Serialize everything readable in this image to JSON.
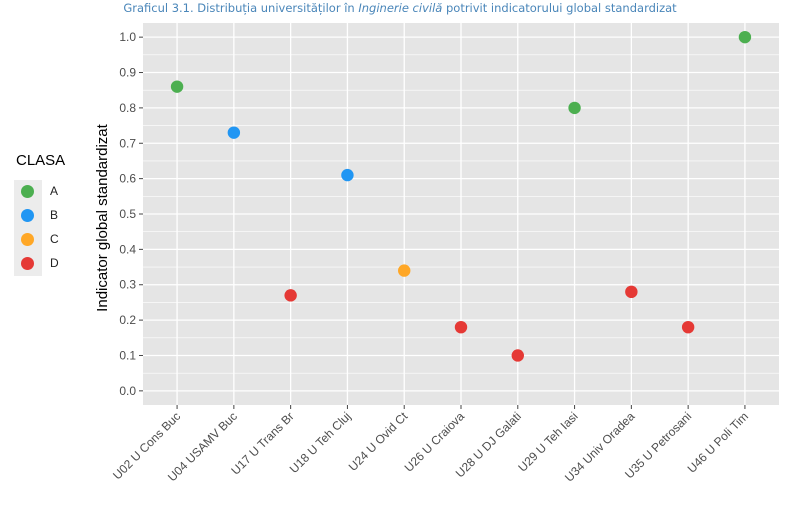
{
  "title": {
    "prefix": "Graficul 3.1. Distribuția universităților în ",
    "italic": "Inginerie civilă",
    "suffix": " potrivit indicatorului global standardizat"
  },
  "colors": {
    "A": "#4caf50",
    "B": "#2196f3",
    "C": "#ffa726",
    "D": "#e53935",
    "panel": "#e5e5e5",
    "grid": "#ffffff"
  },
  "legend": {
    "title": "CLASA",
    "items": [
      {
        "label": "A",
        "class": "A"
      },
      {
        "label": "B",
        "class": "B"
      },
      {
        "label": "C",
        "class": "C"
      },
      {
        "label": "D",
        "class": "D"
      }
    ]
  },
  "chart_data": {
    "type": "scatter",
    "ylabel": "Indicator  global  standardizat",
    "xlabel": "",
    "ylim": [
      -0.04,
      1.04
    ],
    "y_ticks": [
      "0.0",
      "0.1",
      "0.2",
      "0.3",
      "0.4",
      "0.5",
      "0.6",
      "0.7",
      "0.8",
      "0.9",
      "1.0"
    ],
    "grid": true,
    "legend_position": "left",
    "categories": [
      "U02 U Cons Buc",
      "U04 USAMV Buc",
      "U17 U Trans Br",
      "U18 U Teh Cluj",
      "U24 U Ovid Ct",
      "U26 U Craiova",
      "U28 U DJ Galati",
      "U29 U Teh Iasi",
      "U34 Univ Oradea",
      "U35 U Petrosani",
      "U46 U Poli Tim"
    ],
    "points": [
      {
        "x": "U02 U Cons Buc",
        "y": 0.86,
        "class": "A"
      },
      {
        "x": "U04 USAMV Buc",
        "y": 0.73,
        "class": "B"
      },
      {
        "x": "U17 U Trans Br",
        "y": 0.27,
        "class": "D"
      },
      {
        "x": "U18 U Teh Cluj",
        "y": 0.61,
        "class": "B"
      },
      {
        "x": "U24 U Ovid Ct",
        "y": 0.34,
        "class": "C"
      },
      {
        "x": "U26 U Craiova",
        "y": 0.18,
        "class": "D"
      },
      {
        "x": "U28 U DJ Galati",
        "y": 0.1,
        "class": "D"
      },
      {
        "x": "U29 U Teh Iasi",
        "y": 0.8,
        "class": "A"
      },
      {
        "x": "U34 Univ Oradea",
        "y": 0.28,
        "class": "D"
      },
      {
        "x": "U35 U Petrosani",
        "y": 0.18,
        "class": "D"
      },
      {
        "x": "U46 U Poli Tim",
        "y": 1.0,
        "class": "A"
      }
    ]
  }
}
